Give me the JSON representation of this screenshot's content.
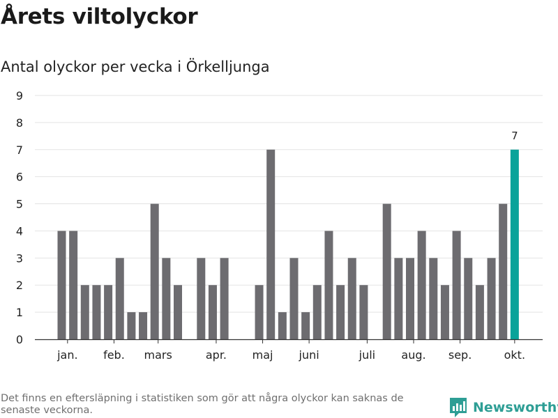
{
  "title": "Årets viltolyckor",
  "subtitle": "Antal olyckor per vecka i Örkelljunga",
  "note": "Det finns en eftersläpning i statistiken som gör att några olyckor kan saknas de senaste veckorna.",
  "brand": {
    "name": "Newsworthy",
    "icon": "newsworthy-logo-icon"
  },
  "colors": {
    "bar": "#6d6c70",
    "highlight": "#0aa39a",
    "grid": "#e3e3e3",
    "axis": "#333333",
    "brand": "#2e9e95"
  },
  "chart_data": {
    "type": "bar",
    "title": "Antal olyckor per vecka i Örkelljunga",
    "xlabel": "",
    "ylabel": "",
    "ylim": [
      0,
      9
    ],
    "yticks": [
      0,
      1,
      2,
      3,
      4,
      5,
      6,
      7,
      8,
      9
    ],
    "x": [
      1,
      2,
      3,
      4,
      5,
      6,
      7,
      8,
      9,
      10,
      11,
      12,
      13,
      14,
      15,
      16,
      17,
      18,
      19,
      20,
      21,
      22,
      23,
      24,
      25,
      26,
      27,
      28,
      29,
      30,
      31,
      32,
      33,
      34,
      35,
      36,
      37,
      38,
      39,
      40
    ],
    "values": [
      4,
      4,
      2,
      2,
      2,
      3,
      1,
      1,
      5,
      3,
      2,
      0,
      3,
      2,
      3,
      0,
      0,
      2,
      7,
      1,
      3,
      1,
      2,
      4,
      2,
      3,
      2,
      0,
      5,
      3,
      3,
      4,
      3,
      2,
      4,
      3,
      2,
      3,
      5,
      7
    ],
    "month_labels": [
      {
        "label": "jan.",
        "week": 1.5
      },
      {
        "label": "feb.",
        "week": 5.5
      },
      {
        "label": "mars",
        "week": 9.3
      },
      {
        "label": "apr.",
        "week": 14.3
      },
      {
        "label": "maj",
        "week": 18.3
      },
      {
        "label": "juni",
        "week": 22.3
      },
      {
        "label": "juli",
        "week": 27.3
      },
      {
        "label": "aug.",
        "week": 31.3
      },
      {
        "label": "sep.",
        "week": 35.3
      },
      {
        "label": "okt.",
        "week": 40.0
      }
    ],
    "highlight_index": 39,
    "highlight_label": "7",
    "grid": true
  }
}
